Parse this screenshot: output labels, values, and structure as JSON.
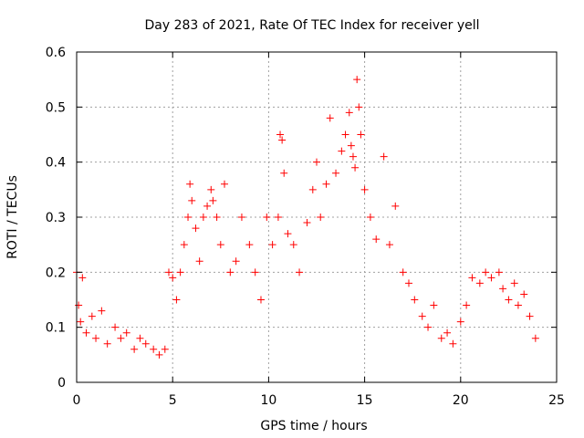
{
  "chart_data": {
    "type": "scatter",
    "title": "Day 283 of 2021, Rate Of TEC Index for receiver yell",
    "xlabel": "GPS time / hours",
    "ylabel": "ROTI / TECUs",
    "xlim": [
      0,
      25
    ],
    "ylim": [
      0,
      0.6
    ],
    "xticks": [
      "0",
      "5",
      "10",
      "15",
      "20",
      "25"
    ],
    "yticks": [
      "0",
      "0.1",
      "0.2",
      "0.3",
      "0.4",
      "0.5",
      "0.6"
    ],
    "grid": true,
    "marker": "plus",
    "color": "#ff0000",
    "series": [
      {
        "x": [
          0.0,
          0.1,
          0.2,
          0.3,
          0.5,
          0.8,
          1.0,
          1.3,
          1.6,
          2.0,
          2.3,
          2.6,
          3.0,
          3.3,
          3.6,
          4.0,
          4.3,
          4.6,
          4.8,
          5.0,
          5.2,
          5.4,
          5.6,
          5.8,
          5.9,
          6.0,
          6.2,
          6.4,
          6.6,
          6.8,
          7.0,
          7.1,
          7.3,
          7.5,
          7.7,
          8.0,
          8.3,
          8.6,
          9.0,
          9.3,
          9.6,
          9.9,
          10.2,
          10.5,
          10.6,
          10.7,
          10.8,
          11.0,
          11.3,
          11.6,
          12.0,
          12.3,
          12.5,
          12.7,
          13.0,
          13.2,
          13.5,
          13.8,
          14.0,
          14.2,
          14.3,
          14.4,
          14.5,
          14.6,
          14.7,
          14.8,
          15.0,
          15.3,
          15.6,
          16.0,
          16.3,
          16.6,
          17.0,
          17.3,
          17.6,
          18.0,
          18.3,
          18.6,
          19.0,
          19.3,
          19.6,
          20.0,
          20.3,
          20.6,
          21.0,
          21.3,
          21.6,
          22.0,
          22.2,
          22.5,
          22.8,
          23.0,
          23.3,
          23.6,
          23.9
        ],
        "y": [
          0.2,
          0.14,
          0.11,
          0.19,
          0.09,
          0.12,
          0.08,
          0.13,
          0.07,
          0.1,
          0.08,
          0.09,
          0.06,
          0.08,
          0.07,
          0.06,
          0.05,
          0.06,
          0.2,
          0.19,
          0.15,
          0.2,
          0.25,
          0.3,
          0.36,
          0.33,
          0.28,
          0.22,
          0.3,
          0.32,
          0.35,
          0.33,
          0.3,
          0.25,
          0.36,
          0.2,
          0.22,
          0.3,
          0.25,
          0.2,
          0.15,
          0.3,
          0.25,
          0.3,
          0.45,
          0.44,
          0.38,
          0.27,
          0.25,
          0.2,
          0.29,
          0.35,
          0.4,
          0.3,
          0.36,
          0.48,
          0.38,
          0.42,
          0.45,
          0.49,
          0.43,
          0.41,
          0.39,
          0.55,
          0.5,
          0.45,
          0.35,
          0.3,
          0.26,
          0.41,
          0.25,
          0.32,
          0.2,
          0.18,
          0.15,
          0.12,
          0.1,
          0.14,
          0.08,
          0.09,
          0.07,
          0.11,
          0.14,
          0.19,
          0.18,
          0.2,
          0.19,
          0.2,
          0.17,
          0.15,
          0.18,
          0.14,
          0.16,
          0.12,
          0.08
        ]
      }
    ]
  }
}
